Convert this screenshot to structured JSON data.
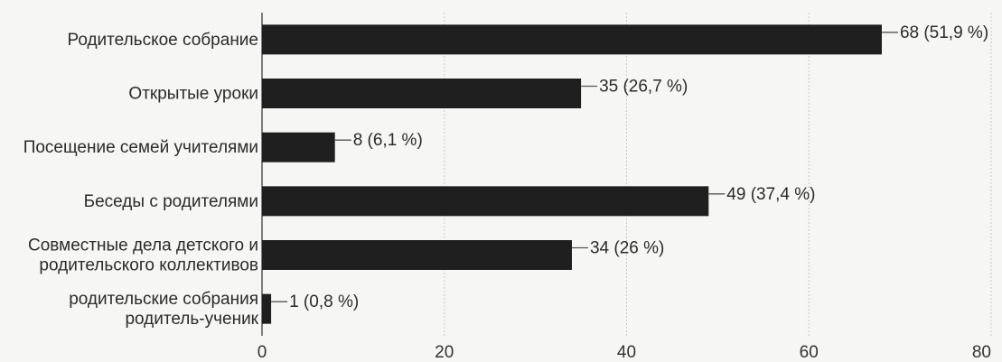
{
  "chart_data": {
    "type": "bar",
    "orientation": "horizontal",
    "categories": [
      [
        "Родительское собрание"
      ],
      [
        "Открытые уроки"
      ],
      [
        "Посещение семей учителями"
      ],
      [
        "Беседы с родителями"
      ],
      [
        "Совместные дела детского и",
        "родительского коллективов"
      ],
      [
        "родительские собрания",
        "родитель-ученик"
      ]
    ],
    "values": [
      68,
      35,
      8,
      49,
      34,
      1
    ],
    "data_labels": [
      "68 (51,9 %)",
      "35 (26,7 %)",
      "8 (6,1 %)",
      "49 (37,4 %)",
      "34 (26 %)",
      "1 (0,8 %)"
    ],
    "xlim": [
      0,
      80
    ],
    "xticks": [
      "0",
      "20",
      "40",
      "60",
      "80"
    ],
    "grid": true,
    "colors": {
      "bar": "#1f1f1f",
      "background": "#f6f6f4"
    }
  }
}
